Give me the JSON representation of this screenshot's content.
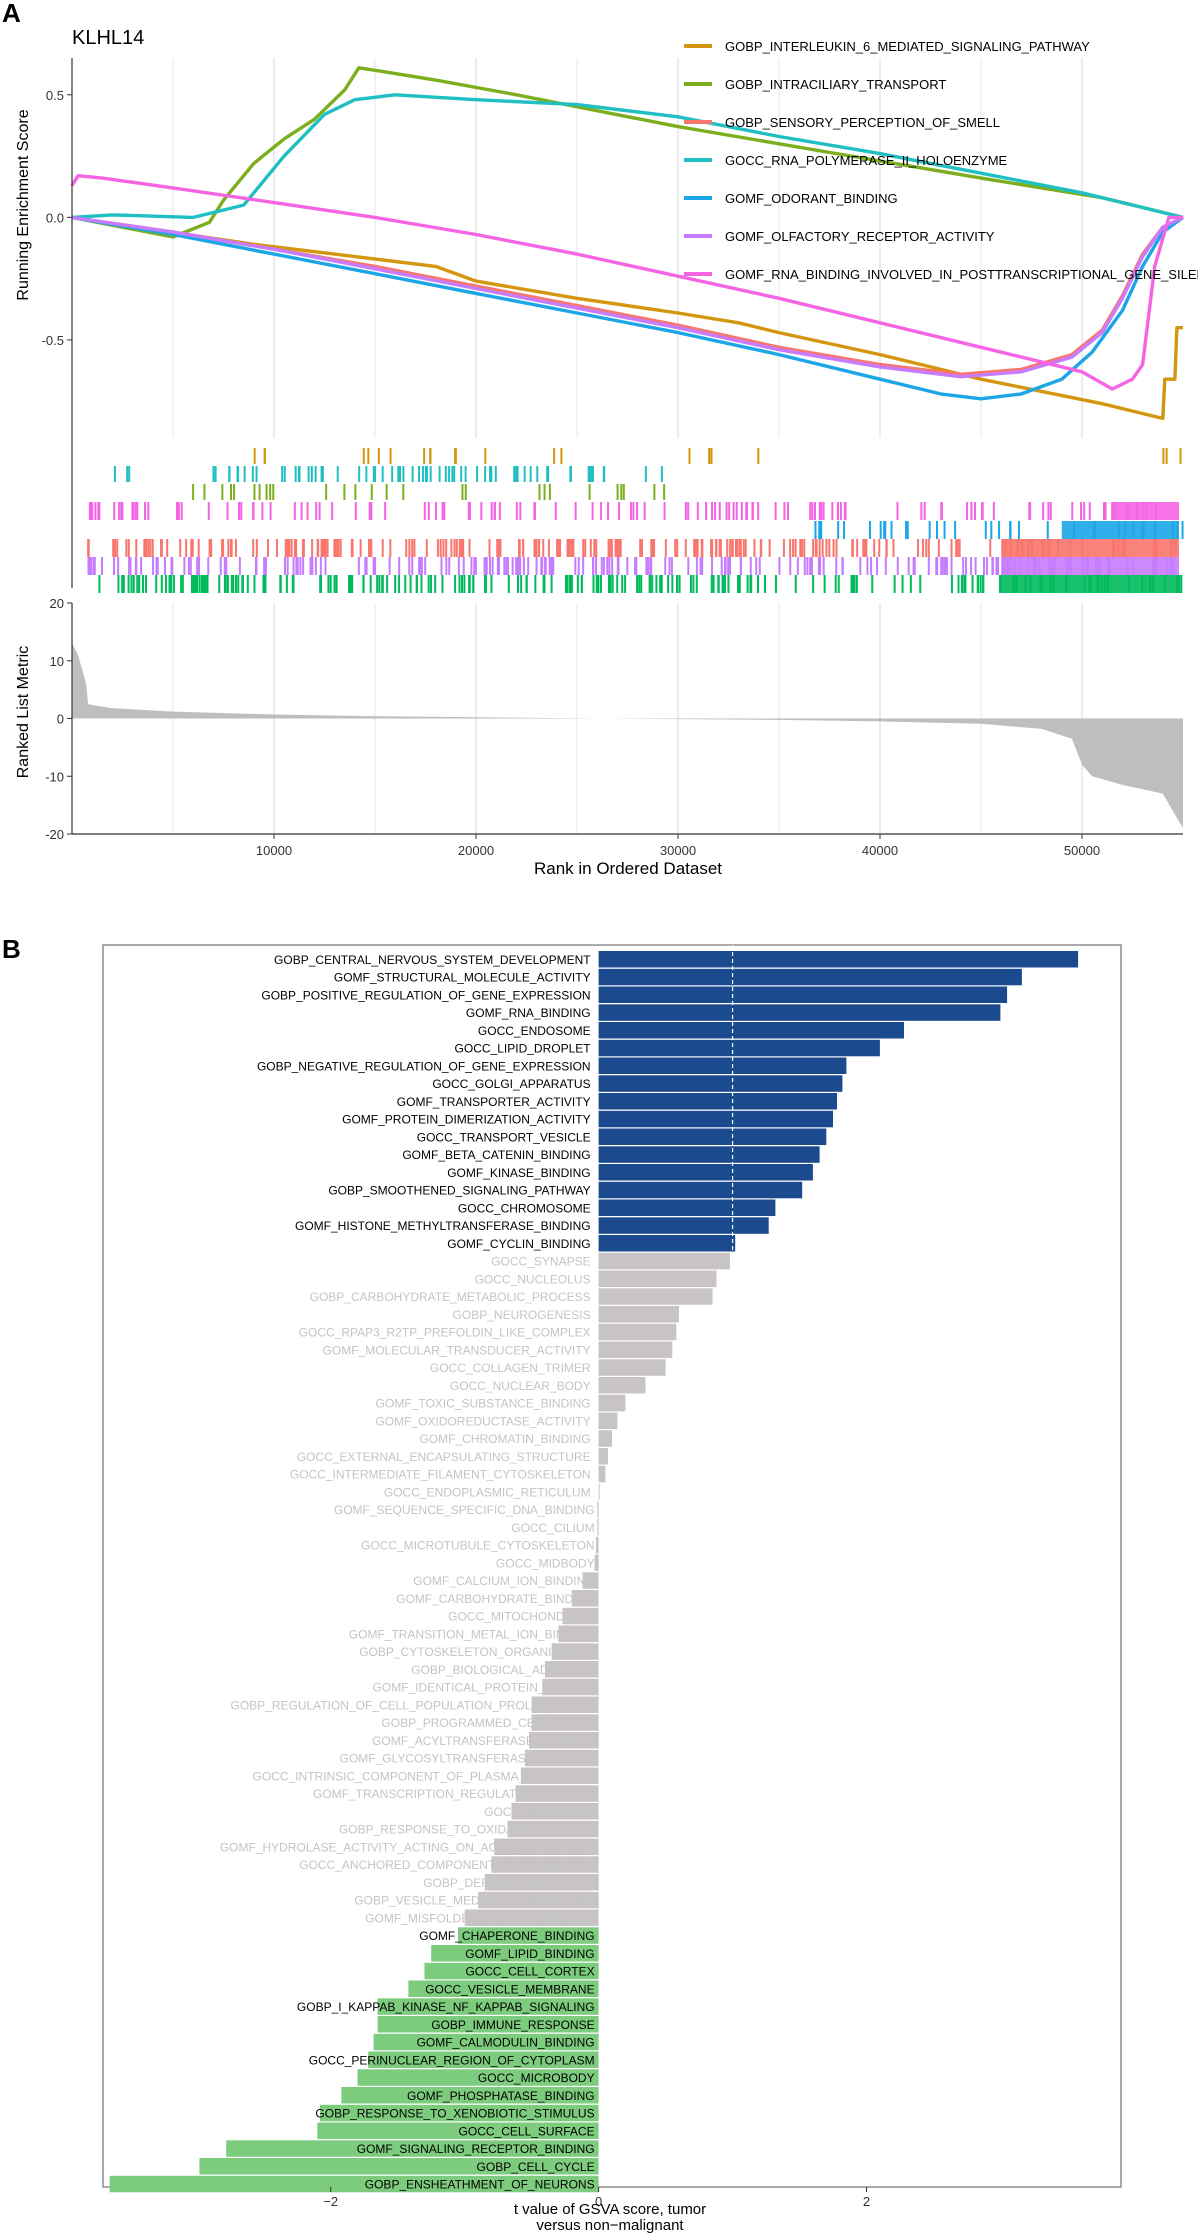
{
  "panels": {
    "a_label": "A",
    "b_label": "B"
  },
  "chart_data": [
    {
      "type": "line",
      "id": "gsea",
      "title": "KLHL14",
      "xlabel": "Rank in Ordered Dataset",
      "ylabel": "Running Enrichment Score",
      "xlim": [
        0,
        55000
      ],
      "ylim": [
        -0.9,
        0.65
      ],
      "x_ticks": [
        10000,
        20000,
        30000,
        40000,
        50000
      ],
      "x_tick_labels": [
        "10000",
        "20000",
        "30000",
        "40000",
        "50000"
      ],
      "y_ticks": [
        0.5,
        0.0,
        -0.5
      ],
      "y_tick_labels": [
        "0.5",
        "0.0",
        "-0.5"
      ],
      "legend_position": "top-right",
      "series": [
        {
          "name": "GOBP_INTERLEUKIN_6_MEDIATED_SIGNALING_PATHWAY",
          "color": "#D4960F",
          "x": [
            0,
            9000,
            13000,
            18000,
            20000,
            25000,
            30000,
            33000,
            35000,
            40000,
            45000,
            48000,
            51000,
            54000,
            54100,
            54600,
            54700,
            55000
          ],
          "y": [
            0,
            -0.11,
            -0.15,
            -0.2,
            -0.26,
            -0.33,
            -0.39,
            -0.43,
            -0.47,
            -0.56,
            -0.66,
            -0.71,
            -0.76,
            -0.82,
            -0.66,
            -0.66,
            -0.45,
            -0.45
          ]
        },
        {
          "name": "GOBP_INTRACILIARY_TRANSPORT",
          "color": "#7CAE1E",
          "x": [
            0,
            5000,
            6800,
            7500,
            9000,
            10500,
            12000,
            13500,
            14200,
            15000,
            18000,
            22000,
            30000,
            35000,
            40000,
            45000,
            48000,
            51000,
            53000,
            54500,
            55000
          ],
          "y": [
            0,
            -0.08,
            -0.02,
            0.07,
            0.22,
            0.32,
            0.4,
            0.52,
            0.61,
            0.6,
            0.56,
            0.5,
            0.37,
            0.3,
            0.23,
            0.16,
            0.12,
            0.08,
            0.04,
            0.01,
            0
          ]
        },
        {
          "name": "GOBP_SENSORY_PERCEPTION_OF_SMELL",
          "color": "#F8766D",
          "x": [
            0,
            5000,
            10000,
            15000,
            20000,
            25000,
            30000,
            35000,
            40000,
            44000,
            47000,
            49500,
            51000,
            52000,
            53000,
            54000,
            55000
          ],
          "y": [
            0,
            -0.06,
            -0.13,
            -0.2,
            -0.28,
            -0.36,
            -0.44,
            -0.53,
            -0.6,
            -0.64,
            -0.62,
            -0.56,
            -0.46,
            -0.32,
            -0.15,
            -0.04,
            0
          ]
        },
        {
          "name": "GOCC_RNA_POLYMERASE_II_HOLOENZYME",
          "color": "#1FBFC3",
          "x": [
            0,
            2000,
            6000,
            8500,
            10500,
            12500,
            14000,
            16000,
            20000,
            25000,
            30000,
            35000,
            40000,
            45000,
            50000,
            53000,
            55000
          ],
          "y": [
            0,
            0.01,
            0.0,
            0.05,
            0.25,
            0.42,
            0.48,
            0.5,
            0.48,
            0.46,
            0.41,
            0.33,
            0.26,
            0.18,
            0.1,
            0.04,
            0
          ]
        },
        {
          "name": "GOMF_ODORANT_BINDING",
          "color": "#1CA6E8",
          "x": [
            0,
            5000,
            10000,
            15000,
            20000,
            25000,
            30000,
            35000,
            40000,
            43000,
            45000,
            47000,
            49000,
            50500,
            52000,
            53000,
            54000,
            55000
          ],
          "y": [
            0,
            -0.07,
            -0.15,
            -0.23,
            -0.31,
            -0.39,
            -0.47,
            -0.56,
            -0.66,
            -0.72,
            -0.74,
            -0.72,
            -0.66,
            -0.55,
            -0.38,
            -0.2,
            -0.06,
            0
          ]
        },
        {
          "name": "GOMF_OLFACTORY_RECEPTOR_ACTIVITY",
          "color": "#C77CFF",
          "x": [
            0,
            5000,
            10000,
            15000,
            20000,
            25000,
            30000,
            35000,
            40000,
            44000,
            47000,
            49500,
            51000,
            52000,
            53000,
            54000,
            55000
          ],
          "y": [
            0,
            -0.06,
            -0.13,
            -0.21,
            -0.29,
            -0.37,
            -0.45,
            -0.54,
            -0.61,
            -0.65,
            -0.63,
            -0.57,
            -0.47,
            -0.33,
            -0.16,
            -0.04,
            0
          ]
        },
        {
          "name": "GOMF_RNA_BINDING_INVOLVED_IN_POSTTRANSCRIPTIONAL_GENE_SILENCING",
          "color": "#F564E3",
          "x": [
            0,
            300,
            1500,
            5000,
            10000,
            15000,
            20000,
            25000,
            30000,
            35000,
            40000,
            45000,
            50000,
            51500,
            52500,
            53000,
            53600,
            54300,
            55000
          ],
          "y": [
            0.13,
            0.17,
            0.16,
            0.12,
            0.06,
            0.0,
            -0.07,
            -0.15,
            -0.24,
            -0.33,
            -0.43,
            -0.53,
            -0.63,
            -0.7,
            -0.66,
            -0.6,
            -0.2,
            0.0,
            0.0
          ]
        }
      ]
    },
    {
      "type": "area",
      "id": "ranked-metric",
      "xlabel": "Rank in Ordered Dataset",
      "ylabel": "Ranked List Metric",
      "xlim": [
        0,
        55000
      ],
      "ylim": [
        -20,
        20
      ],
      "y_ticks": [
        20,
        10,
        0,
        -10,
        -20
      ],
      "y_tick_labels": [
        "20",
        "10",
        "0",
        "-10",
        "-20"
      ],
      "fill_color": "#BEBEBE",
      "x": [
        0,
        300,
        700,
        800,
        1200,
        2000,
        5000,
        10000,
        15000,
        20000,
        25000,
        30000,
        35000,
        40000,
        45000,
        48000,
        49500,
        50000,
        50500,
        52000,
        54000,
        55000
      ],
      "y": [
        13,
        11,
        6,
        2.5,
        2.2,
        1.8,
        1.2,
        0.7,
        0.4,
        0.2,
        0.05,
        -0.1,
        -0.25,
        -0.5,
        -0.9,
        -1.8,
        -3.5,
        -8,
        -10,
        -11.5,
        -13,
        -19
      ]
    },
    {
      "type": "bar",
      "id": "gsva",
      "orientation": "horizontal",
      "xlabel": "t value of GSVA score, tumor\nversus non−malignant",
      "xlim": [
        -3.7,
        3.9
      ],
      "x_ticks": [
        -2,
        0,
        2
      ],
      "x_tick_labels": [
        "−2",
        "0",
        "2"
      ],
      "threshold_line": 1,
      "color_scheme": {
        "up": "#1B4A8E",
        "ns": "#C8C4C6",
        "down": "#7DCC7D",
        "ns_label": "#C4C4C4"
      },
      "categories": [
        "GOBP_CENTRAL_NERVOUS_SYSTEM_DEVELOPMENT",
        "GOMF_STRUCTURAL_MOLECULE_ACTIVITY",
        "GOBP_POSITIVE_REGULATION_OF_GENE_EXPRESSION",
        "GOMF_RNA_BINDING",
        "GOCC_ENDOSOME",
        "GOCC_LIPID_DROPLET",
        "GOBP_NEGATIVE_REGULATION_OF_GENE_EXPRESSION",
        "GOCC_GOLGI_APPARATUS",
        "GOMF_TRANSPORTER_ACTIVITY",
        "GOMF_PROTEIN_DIMERIZATION_ACTIVITY",
        "GOCC_TRANSPORT_VESICLE",
        "GOMF_BETA_CATENIN_BINDING",
        "GOMF_KINASE_BINDING",
        "GOBP_SMOOTHENED_SIGNALING_PATHWAY",
        "GOCC_CHROMOSOME",
        "GOMF_HISTONE_METHYLTRANSFERASE_BINDING",
        "GOMF_CYCLIN_BINDING",
        "GOCC_SYNAPSE",
        "GOCC_NUCLEOLUS",
        "GOBP_CARBOHYDRATE_METABOLIC_PROCESS",
        "GOBP_NEUROGENESIS",
        "GOCC_RPAP3_R2TP_PREFOLDIN_LIKE_COMPLEX",
        "GOMF_MOLECULAR_TRANSDUCER_ACTIVITY",
        "GOCC_COLLAGEN_TRIMER",
        "GOCC_NUCLEAR_BODY",
        "GOMF_TOXIC_SUBSTANCE_BINDING",
        "GOMF_OXIDOREDUCTASE_ACTIVITY",
        "GOMF_CHROMATIN_BINDING",
        "GOCC_EXTERNAL_ENCAPSULATING_STRUCTURE",
        "GOCC_INTERMEDIATE_FILAMENT_CYTOSKELETON",
        "GOCC_ENDOPLASMIC_RETICULUM",
        "GOMF_SEQUENCE_SPECIFIC_DNA_BINDING",
        "GOCC_CILIUM",
        "GOCC_MICROTUBULE_CYTOSKELETON",
        "GOCC_MIDBODY",
        "GOMF_CALCIUM_ION_BINDING",
        "GOMF_CARBOHYDRATE_BINDING",
        "GOCC_MITOCHONDRION",
        "GOMF_TRANSITION_METAL_ION_BINDING",
        "GOBP_CYTOSKELETON_ORGANIZATION",
        "GOBP_BIOLOGICAL_ADHESION",
        "GOMF_IDENTICAL_PROTEIN_BINDING",
        "GOBP_REGULATION_OF_CELL_POPULATION_PROLIFERATION",
        "GOBP_PROGRAMMED_CELL_DEATH",
        "GOMF_ACYLTRANSFERASE_ACTIVITY",
        "GOMF_GLYCOSYLTRANSFERASE_ACTIVITY",
        "GOCC_INTRINSIC_COMPONENT_OF_PLASMA_MEMBRANE",
        "GOMF_TRANSCRIPTION_REGULATOR_ACTIVITY",
        "GOCC_BOUNDARY",
        "GOBP_RESPONSE_TO_OXIDATIVE_STRESS",
        "GOMF_HYDROLASE_ACTIVITY_ACTING_ON_ACID_ANHYDRIDES",
        "GOCC_ANCHORED_COMPONENT_OF_MEMBRANE",
        "GOBP_DEFENSE_RESPONSE",
        "GOBP_VESICLE_MEDIATED_TRANSPORT",
        "GOMF_MISFOLDED_PROTEIN_BINDING",
        "GOMF_CHAPERONE_BINDING",
        "GOMF_LIPID_BINDING",
        "GOCC_CELL_CORTEX",
        "GOCC_VESICLE_MEMBRANE",
        "GOBP_I_KAPPAB_KINASE_NF_KAPPAB_SIGNALING",
        "GOBP_IMMUNE_RESPONSE",
        "GOMF_CALMODULIN_BINDING",
        "GOCC_PERINUCLEAR_REGION_OF_CYTOPLASM",
        "GOCC_MICROBODY",
        "GOMF_PHOSPHATASE_BINDING",
        "GOBP_RESPONSE_TO_XENOBIOTIC_STIMULUS",
        "GOCC_CELL_SURFACE",
        "GOMF_SIGNALING_RECEPTOR_BINDING",
        "GOBP_CELL_CYCLE",
        "GOBP_ENSHEATHMENT_OF_NEURONS"
      ],
      "values": [
        3.58,
        3.16,
        3.05,
        3.0,
        2.28,
        2.1,
        1.85,
        1.82,
        1.78,
        1.75,
        1.7,
        1.65,
        1.6,
        1.52,
        1.32,
        1.27,
        1.02,
        0.98,
        0.88,
        0.85,
        0.6,
        0.58,
        0.55,
        0.5,
        0.35,
        0.2,
        0.14,
        0.1,
        0.07,
        0.05,
        0.0,
        -0.01,
        -0.01,
        -0.02,
        -0.03,
        -0.12,
        -0.2,
        -0.27,
        -0.3,
        -0.35,
        -0.4,
        -0.42,
        -0.5,
        -0.5,
        -0.52,
        -0.55,
        -0.58,
        -0.62,
        -0.65,
        -0.68,
        -0.78,
        -0.8,
        -0.85,
        -0.9,
        -1.0,
        -1.05,
        -1.25,
        -1.3,
        -1.42,
        -1.65,
        -1.65,
        -1.68,
        -1.72,
        -1.8,
        -1.92,
        -2.08,
        -2.1,
        -2.78,
        -2.98,
        -3.65
      ],
      "groups": [
        "up",
        "up",
        "up",
        "up",
        "up",
        "up",
        "up",
        "up",
        "up",
        "up",
        "up",
        "up",
        "up",
        "up",
        "up",
        "up",
        "up",
        "ns",
        "ns",
        "ns",
        "ns",
        "ns",
        "ns",
        "ns",
        "ns",
        "ns",
        "ns",
        "ns",
        "ns",
        "ns",
        "ns",
        "ns",
        "ns",
        "ns",
        "ns",
        "ns",
        "ns",
        "ns",
        "ns",
        "ns",
        "ns",
        "ns",
        "ns",
        "ns",
        "ns",
        "ns",
        "ns",
        "ns",
        "ns",
        "ns",
        "ns",
        "ns",
        "ns",
        "ns",
        "ns",
        "down",
        "down",
        "down",
        "down",
        "down",
        "down",
        "down",
        "down",
        "down",
        "down",
        "down",
        "down",
        "down",
        "down",
        "down"
      ]
    }
  ]
}
